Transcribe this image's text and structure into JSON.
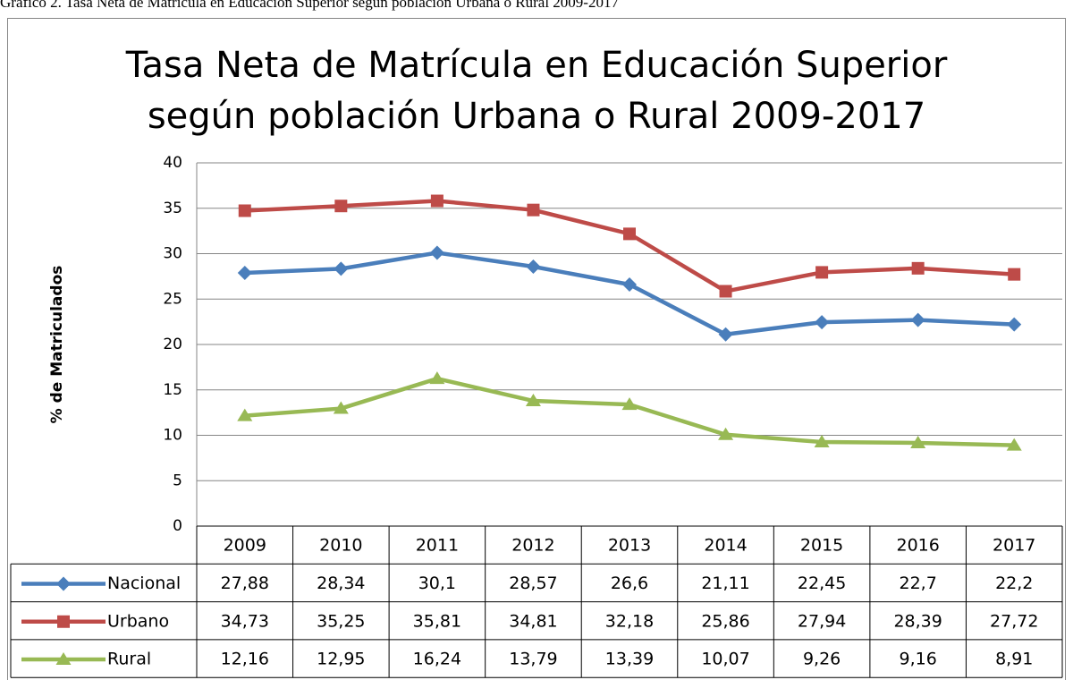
{
  "caption": "Gráfico 2. Tasa Neta de Matrícula en Educación Superior según población Urbana o Rural 2009-2017",
  "chart_data": {
    "type": "line",
    "title": [
      "Tasa Neta de Matrícula en Educación Superior",
      "según población Urbana o Rural 2009-2017"
    ],
    "y_label": "% de Matriculados",
    "categories": [
      "2009",
      "2010",
      "2011",
      "2012",
      "2013",
      "2014",
      "2015",
      "2016",
      "2017"
    ],
    "ylim": [
      0,
      40
    ],
    "yticks": [
      0,
      5,
      10,
      15,
      20,
      25,
      30,
      35,
      40
    ],
    "grid": true,
    "series": [
      {
        "name": "Nacional",
        "color": "#4a7ebb",
        "marker": "diamond",
        "values": [
          27.88,
          28.34,
          30.1,
          28.57,
          26.6,
          21.11,
          22.45,
          22.7,
          22.2
        ],
        "value_labels": [
          "27,88",
          "28,34",
          "30,1",
          "28,57",
          "26,6",
          "21,11",
          "22,45",
          "22,7",
          "22,2"
        ]
      },
      {
        "name": "Urbano",
        "color": "#be4b48",
        "marker": "square",
        "values": [
          34.73,
          35.25,
          35.81,
          34.81,
          32.18,
          25.86,
          27.94,
          28.39,
          27.72
        ],
        "value_labels": [
          "34,73",
          "35,25",
          "35,81",
          "34,81",
          "32,18",
          "25,86",
          "27,94",
          "28,39",
          "27,72"
        ]
      },
      {
        "name": "Rural",
        "color": "#98b954",
        "marker": "triangle",
        "values": [
          12.16,
          12.95,
          16.24,
          13.79,
          13.39,
          10.07,
          9.26,
          9.16,
          8.91
        ],
        "value_labels": [
          "12,16",
          "12,95",
          "16,24",
          "13,79",
          "13,39",
          "10,07",
          "9,26",
          "9,16",
          "8,91"
        ]
      }
    ]
  }
}
